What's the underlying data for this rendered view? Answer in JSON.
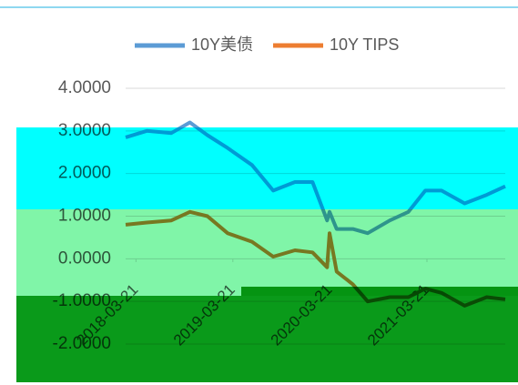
{
  "chart_data": {
    "type": "line",
    "x": [
      "2018-02-10",
      "2018-05-01",
      "2018-08-01",
      "2018-10-10",
      "2018-12-15",
      "2019-03-01",
      "2019-06-01",
      "2019-08-20",
      "2019-11-10",
      "2020-01-15",
      "2020-03-10",
      "2020-03-19",
      "2020-04-15",
      "2020-06-15",
      "2020-08-10",
      "2020-11-01",
      "2021-01-10",
      "2021-03-15",
      "2021-05-15",
      "2021-08-10",
      "2021-11-01",
      "2022-01-10"
    ],
    "series": [
      {
        "name": "10Y美债",
        "color": "#5b9bd5",
        "values": [
          2.85,
          3.0,
          2.95,
          3.2,
          2.9,
          2.6,
          2.2,
          1.6,
          1.8,
          1.8,
          0.9,
          1.1,
          0.7,
          0.7,
          0.6,
          0.9,
          1.1,
          1.6,
          1.6,
          1.3,
          1.5,
          1.7
        ]
      },
      {
        "name": "10Y TIPS",
        "color": "#ed7d31",
        "values": [
          0.8,
          0.85,
          0.9,
          1.1,
          1.0,
          0.6,
          0.4,
          0.05,
          0.2,
          0.15,
          -0.2,
          0.6,
          -0.3,
          -0.6,
          -1.0,
          -0.9,
          -0.9,
          -0.7,
          -0.8,
          -1.1,
          -0.9,
          -0.95
        ]
      }
    ],
    "xlim": [
      "2018-02-10",
      "2022-01-10"
    ],
    "xticks": [
      "2018-03-21",
      "2019-03-21",
      "2020-03-21",
      "2021-03-21"
    ],
    "ylim": [
      -2,
      4
    ],
    "yticks": [
      {
        "value": -2,
        "label": "-2.0000"
      },
      {
        "value": -1,
        "label": "-1.0000"
      },
      {
        "value": 0,
        "label": "0.0000"
      },
      {
        "value": 1,
        "label": "1.0000"
      },
      {
        "value": 2,
        "label": "2.0000"
      },
      {
        "value": 3,
        "label": "3.0000"
      },
      {
        "value": 4,
        "label": "4.0000"
      }
    ],
    "grid": true,
    "legend": "top"
  }
}
